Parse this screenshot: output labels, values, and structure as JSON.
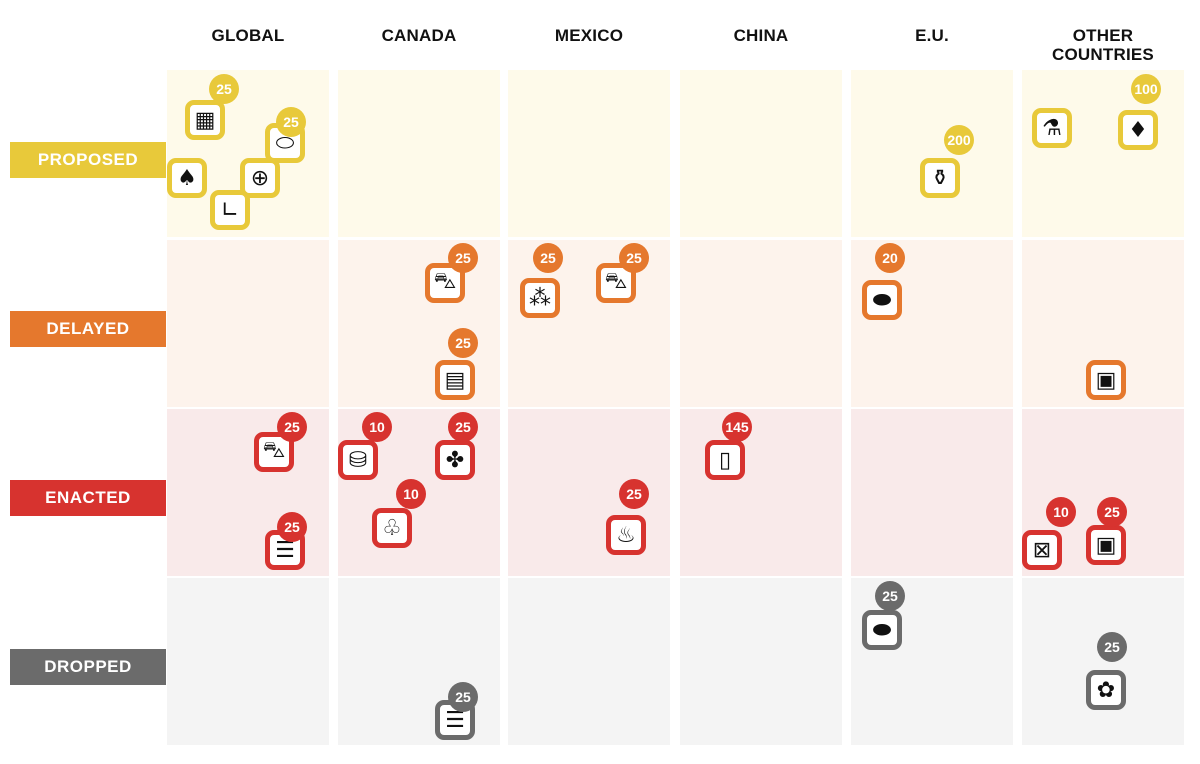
{
  "chart_data": {
    "type": "table",
    "title": "",
    "columns": [
      "GLOBAL",
      "CANADA",
      "MEXICO",
      "CHINA",
      "E.U.",
      "OTHER COUNTRIES"
    ],
    "rows": [
      {
        "label": "PROPOSED",
        "color": "#e8c93a",
        "bg": "#fefaea"
      },
      {
        "label": "DELAYED",
        "color": "#e5782d",
        "bg": "#fdf3ec"
      },
      {
        "label": "ENACTED",
        "color": "#d7332f",
        "bg": "#f9eaea"
      },
      {
        "label": "DROPPED",
        "color": "#6b6b6b",
        "bg": "#f4f4f4"
      }
    ],
    "items": [
      {
        "row": 0,
        "col": 0,
        "icon": "semiconductor-chip-icon",
        "rate": "25"
      },
      {
        "row": 0,
        "col": 0,
        "icon": "pharmaceutical-pill-icon",
        "rate": "25"
      },
      {
        "row": 0,
        "col": 0,
        "icon": "tree-lumber-icon",
        "rate": null
      },
      {
        "row": 0,
        "col": 0,
        "icon": "food-jar-plus-icon",
        "rate": null
      },
      {
        "row": 0,
        "col": 0,
        "icon": "copper-cable-icon",
        "rate": null
      },
      {
        "row": 0,
        "col": 4,
        "icon": "wine-bottle-icon",
        "rate": "200"
      },
      {
        "row": 0,
        "col": 5,
        "icon": "chemicals-plus-icon",
        "rate": null
      },
      {
        "row": 0,
        "col": 5,
        "icon": "shrimp-diamond-plus-icon",
        "rate": "100"
      },
      {
        "row": 1,
        "col": 1,
        "icon": "car-icon",
        "rate": "25"
      },
      {
        "row": 1,
        "col": 1,
        "icon": "dairy-chocolate-plus-icon",
        "rate": "25"
      },
      {
        "row": 1,
        "col": 2,
        "icon": "grapes-suit-plus-icon",
        "rate": "25"
      },
      {
        "row": 1,
        "col": 2,
        "icon": "car-icon",
        "rate": "25"
      },
      {
        "row": 1,
        "col": 4,
        "icon": "perfume-pill-plus-icon",
        "rate": "20"
      },
      {
        "row": 1,
        "col": 5,
        "icon": "pallet-boxes-icon",
        "rate": null
      },
      {
        "row": 2,
        "col": 0,
        "icon": "car-icon",
        "rate": "25"
      },
      {
        "row": 2,
        "col": 0,
        "icon": "steel-beam-icon",
        "rate": "25"
      },
      {
        "row": 2,
        "col": 1,
        "icon": "oil-barrel-icon",
        "rate": "10"
      },
      {
        "row": 2,
        "col": 1,
        "icon": "lobster-bottle-plus-icon",
        "rate": "25"
      },
      {
        "row": 2,
        "col": 1,
        "icon": "potash-bag-icon",
        "rate": "10"
      },
      {
        "row": 2,
        "col": 2,
        "icon": "beer-bottle-plus-icon",
        "rate": "25"
      },
      {
        "row": 2,
        "col": 3,
        "icon": "phone-battery-plus-icon",
        "rate": "145"
      },
      {
        "row": 2,
        "col": 5,
        "icon": "crate-icon",
        "rate": "10"
      },
      {
        "row": 2,
        "col": 5,
        "icon": "pallet-boxes-icon",
        "rate": "25"
      },
      {
        "row": 3,
        "col": 4,
        "icon": "perfume-pill-plus-icon",
        "rate": "25"
      },
      {
        "row": 3,
        "col": 5,
        "icon": "flower-plus-icon",
        "rate": "25"
      },
      {
        "row": 3,
        "col": 1,
        "icon": "steel-beam-icon",
        "rate": "25"
      }
    ]
  }
}
